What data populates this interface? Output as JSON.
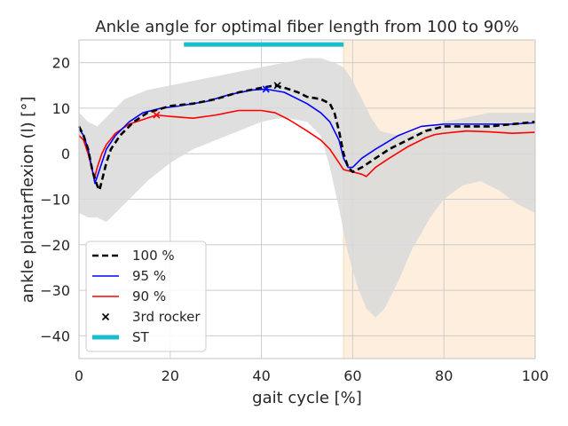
{
  "chart_data": {
    "type": "line",
    "title": "Ankle angle for optimal fiber length from 100 to 90%",
    "xlabel": "gait cycle [%]",
    "ylabel": "ankle plantarflexion (l) [°]",
    "xlim": [
      0,
      100
    ],
    "ylim": [
      -45,
      25
    ],
    "xticks": [
      0,
      20,
      40,
      60,
      80,
      100
    ],
    "yticks": [
      20,
      10,
      0,
      -10,
      -20,
      -30,
      -40
    ],
    "grid": true,
    "legend_position": "lower-left",
    "swing_shade": {
      "x_start": 58,
      "x_end": 100,
      "color": "#fdeedd"
    },
    "stance_bar": {
      "name": "ST",
      "x_start": 23,
      "x_end": 58,
      "y": 24,
      "color": "#17becf"
    },
    "band": {
      "color": "#d9d9d9",
      "upper": [
        [
          0,
          9
        ],
        [
          2,
          7
        ],
        [
          4,
          6
        ],
        [
          7,
          9
        ],
        [
          10,
          12
        ],
        [
          15,
          14
        ],
        [
          20,
          15
        ],
        [
          25,
          16
        ],
        [
          30,
          17
        ],
        [
          35,
          18
        ],
        [
          40,
          19
        ],
        [
          45,
          20
        ],
        [
          50,
          21
        ],
        [
          53,
          21
        ],
        [
          56,
          20
        ],
        [
          58,
          19
        ],
        [
          60,
          16
        ],
        [
          62,
          12
        ],
        [
          64,
          8
        ],
        [
          66,
          5
        ],
        [
          70,
          4
        ],
        [
          75,
          5
        ],
        [
          80,
          7
        ],
        [
          85,
          8
        ],
        [
          90,
          9
        ],
        [
          95,
          9
        ],
        [
          100,
          9
        ]
      ],
      "lower": [
        [
          0,
          -13
        ],
        [
          2,
          -14
        ],
        [
          4,
          -14
        ],
        [
          6,
          -15
        ],
        [
          10,
          -11
        ],
        [
          15,
          -6
        ],
        [
          20,
          -2
        ],
        [
          25,
          1
        ],
        [
          30,
          3
        ],
        [
          35,
          5
        ],
        [
          40,
          7
        ],
        [
          45,
          8
        ],
        [
          50,
          7
        ],
        [
          53,
          4
        ],
        [
          55,
          -3
        ],
        [
          57,
          -12
        ],
        [
          59,
          -22
        ],
        [
          61,
          -29
        ],
        [
          63,
          -34
        ],
        [
          65,
          -36
        ],
        [
          67,
          -34
        ],
        [
          70,
          -28
        ],
        [
          73,
          -21
        ],
        [
          77,
          -14
        ],
        [
          80,
          -10
        ],
        [
          84,
          -7
        ],
        [
          88,
          -6
        ],
        [
          92,
          -8
        ],
        [
          96,
          -11
        ],
        [
          100,
          -13
        ]
      ]
    },
    "series": [
      {
        "name": "100 %",
        "color": "#000000",
        "dashed": true,
        "width": 2.6,
        "points": [
          [
            0,
            6
          ],
          [
            1,
            4
          ],
          [
            2,
            1
          ],
          [
            3,
            -4
          ],
          [
            4,
            -7
          ],
          [
            4.5,
            -8
          ],
          [
            5,
            -6
          ],
          [
            6,
            -2
          ],
          [
            7,
            1
          ],
          [
            9,
            4
          ],
          [
            12,
            7
          ],
          [
            15,
            9
          ],
          [
            20,
            10.5
          ],
          [
            25,
            11
          ],
          [
            30,
            12
          ],
          [
            35,
            13.5
          ],
          [
            40,
            14.5
          ],
          [
            43,
            15
          ],
          [
            45,
            14.5
          ],
          [
            48,
            13.5
          ],
          [
            50,
            12.5
          ],
          [
            53,
            12
          ],
          [
            55,
            11
          ],
          [
            56,
            9
          ],
          [
            57,
            5
          ],
          [
            58,
            0
          ],
          [
            59,
            -3
          ],
          [
            60,
            -4
          ],
          [
            62,
            -3
          ],
          [
            65,
            -1
          ],
          [
            68,
            1
          ],
          [
            72,
            3
          ],
          [
            76,
            5
          ],
          [
            80,
            6
          ],
          [
            85,
            6
          ],
          [
            90,
            6
          ],
          [
            95,
            6.5
          ],
          [
            100,
            7
          ]
        ]
      },
      {
        "name": "95 %",
        "color": "#0000ff",
        "dashed": false,
        "width": 1.6,
        "points": [
          [
            0,
            5.5
          ],
          [
            1,
            4
          ],
          [
            2,
            1
          ],
          [
            3,
            -4
          ],
          [
            3.5,
            -6.5
          ],
          [
            4,
            -5
          ],
          [
            5,
            -2
          ],
          [
            6,
            1
          ],
          [
            8,
            4
          ],
          [
            11,
            7
          ],
          [
            14,
            9
          ],
          [
            18,
            10
          ],
          [
            22,
            10.5
          ],
          [
            28,
            11.5
          ],
          [
            33,
            13
          ],
          [
            38,
            14
          ],
          [
            41,
            14.2
          ],
          [
            45,
            13.5
          ],
          [
            50,
            11
          ],
          [
            53,
            9
          ],
          [
            55,
            7
          ],
          [
            57,
            3
          ],
          [
            58,
            -1
          ],
          [
            59,
            -3
          ],
          [
            60,
            -3
          ],
          [
            62,
            -1
          ],
          [
            65,
            1
          ],
          [
            70,
            4
          ],
          [
            75,
            6
          ],
          [
            80,
            6.5
          ],
          [
            85,
            6.5
          ],
          [
            90,
            6.5
          ],
          [
            95,
            6.5
          ],
          [
            100,
            6.8
          ]
        ]
      },
      {
        "name": "90 %",
        "color": "#ff0000",
        "dashed": false,
        "width": 1.6,
        "points": [
          [
            0,
            4
          ],
          [
            1,
            3
          ],
          [
            2,
            0
          ],
          [
            3,
            -4
          ],
          [
            3.5,
            -5
          ],
          [
            4,
            -3
          ],
          [
            5,
            0
          ],
          [
            6,
            2
          ],
          [
            8,
            4.5
          ],
          [
            11,
            6.5
          ],
          [
            14,
            7.5
          ],
          [
            17,
            8.5
          ],
          [
            20,
            8.2
          ],
          [
            25,
            7.8
          ],
          [
            30,
            8.5
          ],
          [
            35,
            9.5
          ],
          [
            40,
            9.5
          ],
          [
            43,
            9
          ],
          [
            46,
            7.5
          ],
          [
            50,
            5
          ],
          [
            53,
            3
          ],
          [
            55,
            1
          ],
          [
            57,
            -2
          ],
          [
            58,
            -3.5
          ],
          [
            60,
            -4
          ],
          [
            62,
            -4.5
          ],
          [
            63,
            -5
          ],
          [
            65,
            -3
          ],
          [
            68,
            -1
          ],
          [
            72,
            1.5
          ],
          [
            76,
            3.5
          ],
          [
            78,
            4.2
          ],
          [
            80,
            4.5
          ],
          [
            85,
            5
          ],
          [
            90,
            4.8
          ],
          [
            95,
            4.5
          ],
          [
            100,
            4.7
          ]
        ]
      }
    ],
    "markers": [
      {
        "name": "3rd rocker",
        "series": "100 %",
        "x": 43.5,
        "y": 15,
        "color": "#000000"
      },
      {
        "name": "3rd rocker",
        "series": "95 %",
        "x": 41,
        "y": 14.2,
        "color": "#0000ff"
      },
      {
        "name": "3rd rocker",
        "series": "90 %",
        "x": 17,
        "y": 8.5,
        "color": "#ff0000"
      }
    ],
    "legend": [
      {
        "label": "100 %",
        "kind": "dashed",
        "color": "#000000"
      },
      {
        "label": "95 %",
        "kind": "line",
        "color": "#0000ff"
      },
      {
        "label": "90 %",
        "kind": "line",
        "color": "#ff0000"
      },
      {
        "label": "3rd rocker",
        "kind": "marker",
        "color": "#000000"
      },
      {
        "label": "ST",
        "kind": "thick",
        "color": "#17becf"
      }
    ]
  }
}
